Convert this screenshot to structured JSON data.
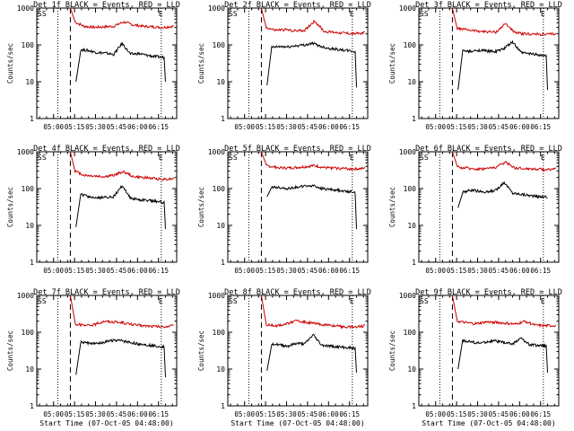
{
  "chart_data": [
    {
      "type": "line",
      "title": "Det 1f BLACK = Events, RED = LLD",
      "xlabel": "",
      "ylabel": "Counts/sec",
      "yscale": "log",
      "ylim": [
        1,
        1000
      ],
      "x_ticks": [
        "05:00",
        "05:15",
        "05:30",
        "05:45",
        "06:00",
        "06:15"
      ],
      "markers": [
        {
          "label": "SS",
          "time": "04:48"
        },
        {
          "label": "E",
          "time": "06:17"
        }
      ],
      "series": [
        {
          "color": "#cc0000",
          "start": "05:12",
          "end": "06:26",
          "values": [
            950,
            420,
            320,
            300,
            310,
            320,
            420,
            350,
            320,
            310,
            300,
            320,
            330
          ]
        },
        {
          "color": "#000000",
          "start": "05:16",
          "end": "06:20",
          "values": [
            10,
            75,
            70,
            62,
            60,
            55,
            110,
            56,
            58,
            52,
            48,
            46,
            10
          ]
        }
      ]
    },
    {
      "type": "line",
      "title": "Det 2f BLACK = Events, RED = LLD",
      "xlabel": "",
      "ylabel": "Counts/sec",
      "yscale": "log",
      "ylim": [
        1,
        1000
      ],
      "x_ticks": [
        "05:00",
        "05:15",
        "05:30",
        "05:45",
        "06:00",
        "06:15"
      ],
      "markers": [
        {
          "label": "SS",
          "time": "04:48"
        },
        {
          "label": "E",
          "time": "06:17"
        }
      ],
      "series": [
        {
          "color": "#cc0000",
          "start": "05:12",
          "end": "06:26",
          "values": [
            950,
            300,
            250,
            260,
            240,
            250,
            450,
            230,
            220,
            210,
            200,
            210,
            230
          ]
        },
        {
          "color": "#000000",
          "start": "05:16",
          "end": "06:20",
          "values": [
            8,
            85,
            90,
            88,
            95,
            100,
            110,
            90,
            80,
            75,
            70,
            65,
            7
          ]
        }
      ]
    },
    {
      "type": "line",
      "title": "Det 3f BLACK = Events, RED = LLD",
      "xlabel": "",
      "ylabel": "Counts/sec",
      "yscale": "log",
      "ylim": [
        1,
        1000
      ],
      "x_ticks": [
        "05:00",
        "05:15",
        "05:30",
        "05:45",
        "06:00",
        "06:15"
      ],
      "markers": [
        {
          "label": "SS",
          "time": "04:48"
        },
        {
          "label": "E",
          "time": "06:17"
        }
      ],
      "series": [
        {
          "color": "#cc0000",
          "start": "05:12",
          "end": "06:26",
          "values": [
            950,
            280,
            260,
            240,
            230,
            220,
            380,
            210,
            200,
            195,
            190,
            200,
            210
          ]
        },
        {
          "color": "#000000",
          "start": "05:16",
          "end": "06:20",
          "values": [
            6,
            70,
            65,
            72,
            68,
            66,
            80,
            120,
            62,
            58,
            55,
            50,
            6
          ]
        }
      ]
    },
    {
      "type": "line",
      "title": "Det 4f BLACK = Events, RED = LLD",
      "xlabel": "",
      "ylabel": "Counts/sec",
      "yscale": "log",
      "ylim": [
        1,
        1000
      ],
      "x_ticks": [
        "05:00",
        "05:15",
        "05:30",
        "05:45",
        "06:00",
        "06:15"
      ],
      "markers": [
        {
          "label": "SS",
          "time": "04:48"
        },
        {
          "label": "E",
          "time": "06:17"
        }
      ],
      "series": [
        {
          "color": "#cc0000",
          "start": "05:12",
          "end": "06:26",
          "values": [
            950,
            300,
            230,
            220,
            210,
            230,
            290,
            210,
            200,
            190,
            180,
            185,
            200
          ]
        },
        {
          "color": "#000000",
          "start": "05:16",
          "end": "06:20",
          "values": [
            9,
            70,
            60,
            55,
            58,
            60,
            120,
            55,
            50,
            48,
            45,
            42,
            8
          ]
        }
      ]
    },
    {
      "type": "line",
      "title": "Det 5f BLACK = Events, RED = LLD",
      "xlabel": "",
      "ylabel": "Counts/sec",
      "yscale": "log",
      "ylim": [
        1,
        1000
      ],
      "x_ticks": [
        "05:00",
        "05:15",
        "05:30",
        "05:45",
        "06:00",
        "06:15"
      ],
      "markers": [
        {
          "label": "SS",
          "time": "04:48"
        },
        {
          "label": "E",
          "time": "06:17"
        }
      ],
      "series": [
        {
          "color": "#cc0000",
          "start": "05:12",
          "end": "06:26",
          "values": [
            950,
            420,
            380,
            360,
            370,
            390,
            420,
            370,
            360,
            350,
            340,
            350,
            380
          ]
        },
        {
          "color": "#000000",
          "start": "05:16",
          "end": "06:20",
          "values": [
            60,
            110,
            105,
            100,
            110,
            115,
            120,
            100,
            95,
            90,
            85,
            80,
            8
          ]
        }
      ]
    },
    {
      "type": "line",
      "title": "Det 6f BLACK = Events, RED = LLD",
      "xlabel": "",
      "ylabel": "Counts/sec",
      "yscale": "log",
      "ylim": [
        1,
        1000
      ],
      "x_ticks": [
        "05:00",
        "05:15",
        "05:30",
        "05:45",
        "06:00",
        "06:15"
      ],
      "markers": [
        {
          "label": "SS",
          "time": "04:48"
        },
        {
          "label": "E",
          "time": "06:17"
        }
      ],
      "series": [
        {
          "color": "#cc0000",
          "start": "05:12",
          "end": "06:26",
          "values": [
            950,
            380,
            360,
            340,
            350,
            380,
            520,
            360,
            350,
            340,
            330,
            340,
            370
          ]
        },
        {
          "color": "#000000",
          "start": "05:16",
          "end": "06:20",
          "values": [
            30,
            80,
            90,
            85,
            80,
            90,
            150,
            75,
            70,
            65,
            60,
            60,
            55
          ]
        }
      ]
    },
    {
      "type": "line",
      "title": "Det 7f BLACK = Events, RED = LLD",
      "xlabel": "Start Time (07-Oct-05 04:48:00)",
      "ylabel": "Counts/sec",
      "yscale": "log",
      "ylim": [
        1,
        1000
      ],
      "x_ticks": [
        "05:00",
        "05:15",
        "05:30",
        "05:45",
        "06:00",
        "06:15"
      ],
      "markers": [
        {
          "label": "SS",
          "time": "04:48"
        },
        {
          "label": "E",
          "time": "06:17"
        }
      ],
      "series": [
        {
          "color": "#cc0000",
          "start": "05:12",
          "end": "06:26",
          "values": [
            950,
            170,
            150,
            160,
            200,
            190,
            180,
            160,
            150,
            145,
            140,
            150,
            155
          ]
        },
        {
          "color": "#000000",
          "start": "05:16",
          "end": "06:20",
          "values": [
            7,
            55,
            50,
            48,
            55,
            60,
            58,
            52,
            48,
            45,
            42,
            40,
            6
          ]
        }
      ]
    },
    {
      "type": "line",
      "title": "Det 8f BLACK = Events, RED = LLD",
      "xlabel": "Start Time (07-Oct-05 04:48:00)",
      "ylabel": "Counts/sec",
      "yscale": "log",
      "ylim": [
        1,
        1000
      ],
      "x_ticks": [
        "05:00",
        "05:15",
        "05:30",
        "05:45",
        "06:00",
        "06:15"
      ],
      "markers": [
        {
          "label": "SS",
          "time": "04:48"
        },
        {
          "label": "E",
          "time": "06:17"
        }
      ],
      "series": [
        {
          "color": "#cc0000",
          "start": "05:12",
          "end": "06:26",
          "values": [
            950,
            160,
            150,
            165,
            200,
            190,
            170,
            160,
            150,
            140,
            140,
            145,
            160
          ]
        },
        {
          "color": "#000000",
          "start": "05:16",
          "end": "06:20",
          "values": [
            9,
            50,
            45,
            42,
            50,
            48,
            85,
            45,
            42,
            40,
            38,
            37,
            8
          ]
        }
      ]
    },
    {
      "type": "line",
      "title": "Det 9f BLACK = Events, RED = LLD",
      "xlabel": "Start Time (07-Oct-05 04:48:00)",
      "ylabel": "Counts/sec",
      "yscale": "log",
      "ylim": [
        1,
        1000
      ],
      "x_ticks": [
        "05:00",
        "05:15",
        "05:30",
        "05:45",
        "06:00",
        "06:15"
      ],
      "markers": [
        {
          "label": "SS",
          "time": "04:48"
        },
        {
          "label": "E",
          "time": "06:17"
        }
      ],
      "series": [
        {
          "color": "#cc0000",
          "start": "05:12",
          "end": "06:26",
          "values": [
            950,
            200,
            180,
            170,
            190,
            185,
            175,
            165,
            200,
            155,
            150,
            150,
            160
          ]
        },
        {
          "color": "#000000",
          "start": "05:16",
          "end": "06:20",
          "values": [
            10,
            60,
            55,
            50,
            55,
            58,
            52,
            48,
            70,
            46,
            44,
            42,
            8
          ]
        }
      ]
    }
  ]
}
